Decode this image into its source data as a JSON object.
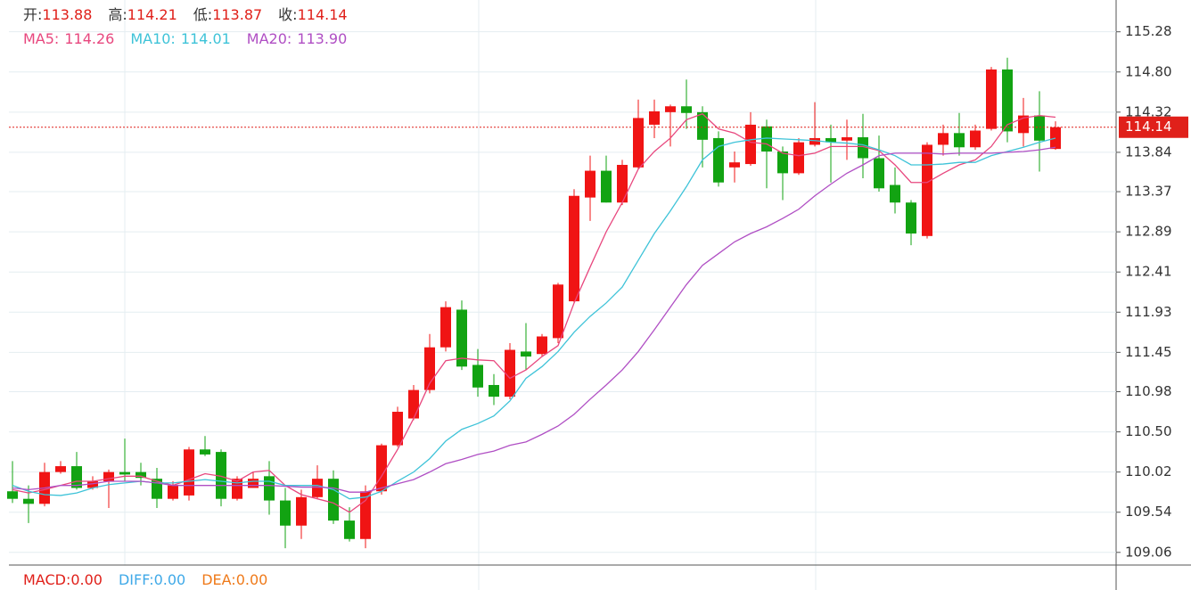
{
  "chart_data": {
    "type": "candlestick",
    "readout": [
      {
        "label": "开:",
        "value": "113.88"
      },
      {
        "label": "高:",
        "value": "114.21"
      },
      {
        "label": "低:",
        "value": "113.87"
      },
      {
        "label": "收:",
        "value": "114.14"
      }
    ],
    "up_color": "#f01414",
    "down_color": "#12a312",
    "open": [
      109.79,
      109.7,
      109.64,
      110.02,
      110.09,
      109.83,
      109.91,
      110.02,
      110.02,
      109.94,
      109.7,
      109.74,
      110.29,
      110.26,
      109.7,
      109.83,
      109.97,
      109.68,
      109.38,
      109.72,
      109.94,
      109.44,
      109.22,
      109.79,
      110.34,
      110.66,
      111.0,
      111.51,
      111.96,
      111.3,
      111.06,
      110.92,
      111.46,
      111.43,
      111.62,
      112.06,
      113.3,
      113.62,
      113.24,
      113.66,
      114.17,
      114.32,
      114.39,
      114.32,
      114.01,
      113.66,
      113.7,
      114.15,
      113.85,
      113.59,
      113.93,
      114.01,
      113.98,
      114.02,
      113.77,
      113.45,
      113.24,
      112.84,
      113.93,
      114.07,
      113.9,
      114.12,
      114.83,
      114.07,
      114.28,
      113.88
    ],
    "high": [
      110.15,
      109.86,
      110.13,
      110.15,
      110.26,
      109.97,
      110.05,
      110.42,
      110.13,
      110.07,
      109.91,
      110.32,
      110.45,
      110.29,
      109.97,
      110.02,
      110.15,
      109.83,
      109.81,
      110.1,
      110.04,
      109.6,
      109.86,
      110.36,
      110.8,
      111.06,
      111.67,
      112.06,
      112.07,
      111.49,
      111.19,
      111.56,
      111.8,
      111.67,
      112.28,
      113.4,
      113.8,
      113.8,
      113.75,
      114.47,
      114.47,
      114.41,
      114.71,
      114.39,
      114.09,
      113.85,
      114.32,
      114.23,
      113.91,
      114.01,
      114.44,
      114.17,
      114.23,
      114.3,
      114.04,
      113.66,
      113.27,
      113.96,
      114.17,
      114.31,
      114.17,
      114.86,
      114.97,
      114.49,
      114.57,
      114.21
    ],
    "low": [
      109.65,
      109.41,
      109.61,
      110.0,
      109.81,
      109.81,
      109.59,
      109.91,
      109.86,
      109.59,
      109.68,
      109.68,
      110.21,
      109.61,
      109.68,
      109.83,
      109.51,
      109.11,
      109.22,
      109.7,
      109.4,
      109.19,
      109.11,
      109.75,
      110.32,
      110.64,
      110.96,
      111.46,
      111.24,
      110.92,
      110.82,
      110.89,
      111.24,
      111.4,
      111.56,
      112.04,
      113.02,
      113.24,
      113.21,
      113.64,
      114.01,
      113.91,
      114.12,
      113.66,
      113.43,
      113.48,
      113.68,
      113.41,
      113.27,
      113.57,
      113.91,
      113.48,
      113.75,
      113.53,
      113.37,
      113.11,
      112.73,
      112.81,
      113.8,
      113.8,
      113.87,
      114.1,
      113.96,
      113.91,
      113.61,
      113.87
    ],
    "close": [
      109.7,
      109.64,
      110.02,
      110.09,
      109.83,
      109.91,
      110.02,
      109.99,
      109.95,
      109.7,
      109.86,
      110.29,
      110.23,
      109.7,
      109.94,
      109.94,
      109.68,
      109.38,
      109.72,
      109.94,
      109.44,
      109.22,
      109.79,
      110.34,
      110.74,
      111.0,
      111.51,
      111.99,
      111.28,
      111.03,
      110.92,
      111.48,
      111.4,
      111.64,
      112.26,
      113.32,
      113.62,
      113.24,
      113.69,
      114.25,
      114.33,
      114.39,
      114.31,
      113.99,
      113.48,
      113.72,
      114.17,
      113.85,
      113.59,
      113.96,
      114.01,
      113.96,
      114.02,
      113.77,
      113.41,
      113.24,
      112.87,
      113.93,
      114.07,
      113.9,
      114.1,
      114.83,
      114.09,
      114.28,
      113.98,
      114.14
    ],
    "series": [
      {
        "name": "MA5:",
        "readout": "114.26",
        "color": "#e8477e",
        "values": [
          109.81,
          109.77,
          109.81,
          109.86,
          109.91,
          109.91,
          109.94,
          109.97,
          109.97,
          109.91,
          109.86,
          109.93,
          110.0,
          109.97,
          109.91,
          110.02,
          110.04,
          109.86,
          109.75,
          109.7,
          109.65,
          109.54,
          109.68,
          109.97,
          110.29,
          110.66,
          111.08,
          111.35,
          111.38,
          111.36,
          111.35,
          111.14,
          111.24,
          111.4,
          111.53,
          112.04,
          112.47,
          112.89,
          113.24,
          113.64,
          113.85,
          114.01,
          114.23,
          114.3,
          114.12,
          114.07,
          113.96,
          113.94,
          113.83,
          113.8,
          113.83,
          113.91,
          113.91,
          113.91,
          113.86,
          113.69,
          113.48,
          113.48,
          113.59,
          113.69,
          113.75,
          113.91,
          114.17,
          114.25,
          114.28,
          114.26
        ]
      },
      {
        "name": "MA10:",
        "readout": "114.01",
        "color": "#3ec3d8",
        "values": [
          109.86,
          109.79,
          109.75,
          109.74,
          109.77,
          109.83,
          109.87,
          109.89,
          109.91,
          109.89,
          109.89,
          109.91,
          109.93,
          109.91,
          109.89,
          109.91,
          109.91,
          109.86,
          109.86,
          109.86,
          109.81,
          109.7,
          109.72,
          109.79,
          109.91,
          110.02,
          110.18,
          110.39,
          110.53,
          110.6,
          110.69,
          110.87,
          111.14,
          111.28,
          111.46,
          111.69,
          111.88,
          112.04,
          112.23,
          112.55,
          112.87,
          113.14,
          113.43,
          113.75,
          113.91,
          113.96,
          113.99,
          114.01,
          114.0,
          113.99,
          113.98,
          113.96,
          113.95,
          113.93,
          113.87,
          113.8,
          113.69,
          113.69,
          113.7,
          113.72,
          113.72,
          113.8,
          113.85,
          113.9,
          113.96,
          114.01
        ]
      },
      {
        "name": "MA20:",
        "readout": "113.90",
        "color": "#b04fc4",
        "values": [
          109.83,
          109.81,
          109.83,
          109.86,
          109.86,
          109.88,
          109.91,
          109.91,
          109.91,
          109.89,
          109.86,
          109.86,
          109.86,
          109.86,
          109.86,
          109.86,
          109.86,
          109.85,
          109.84,
          109.84,
          109.83,
          109.78,
          109.78,
          109.83,
          109.88,
          109.93,
          110.02,
          110.12,
          110.17,
          110.23,
          110.27,
          110.34,
          110.38,
          110.47,
          110.57,
          110.71,
          110.89,
          111.06,
          111.24,
          111.46,
          111.72,
          111.99,
          112.26,
          112.49,
          112.63,
          112.77,
          112.87,
          112.95,
          113.05,
          113.16,
          113.32,
          113.46,
          113.59,
          113.69,
          113.8,
          113.83,
          113.83,
          113.83,
          113.82,
          113.83,
          113.83,
          113.83,
          113.84,
          113.85,
          113.87,
          113.9
        ]
      }
    ],
    "last_price": 114.14,
    "last_price_color": "#e0201a",
    "ylim": [
      108.93,
      115.66
    ],
    "yticks": [
      115.28,
      {
        "value": 114.8,
        "label": "114.80"
      },
      114.32,
      113.84,
      113.37,
      112.89,
      112.41,
      111.93,
      111.45,
      110.98,
      {
        "value": 110.5,
        "label": "110.50"
      },
      110.02,
      109.54,
      109.06
    ],
    "grid": true,
    "macd_readout": [
      {
        "label": "MACD:",
        "value": "0.00",
        "color": "#e0201a"
      },
      {
        "label": "DIFF:",
        "value": "0.00",
        "color": "#3fa9e8"
      },
      {
        "label": "DEA:",
        "value": "0.00",
        "color": "#ef7a1a"
      }
    ]
  }
}
